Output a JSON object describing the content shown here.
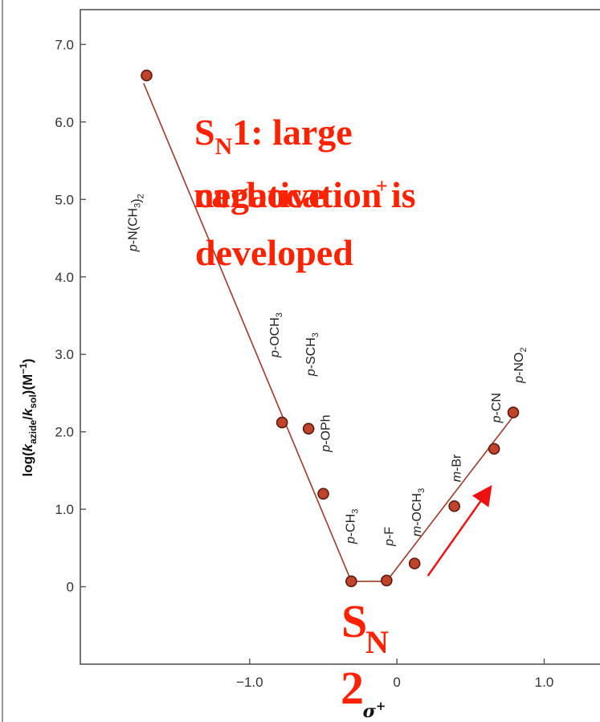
{
  "chart_data": {
    "type": "scatter",
    "xlabel": "σ⁺",
    "ylabel": "log(k_azide/k_sol)(M⁻¹)",
    "xlim": [
      -2.15,
      1.45
    ],
    "ylim": [
      -1.0,
      7.45
    ],
    "x_ticks": [
      {
        "value": -1.0,
        "label": "−1.0"
      },
      {
        "value": 0,
        "label": "0"
      },
      {
        "value": 1.0,
        "label": "1.0"
      }
    ],
    "y_ticks": [
      {
        "value": 0,
        "label": "0"
      },
      {
        "value": 1.0,
        "label": "1.0"
      },
      {
        "value": 2.0,
        "label": "2.0"
      },
      {
        "value": 3.0,
        "label": "3.0"
      },
      {
        "value": 4.0,
        "label": "4.0"
      },
      {
        "value": 5.0,
        "label": "5.0"
      },
      {
        "value": 6.0,
        "label": "6.0"
      },
      {
        "value": 7.0,
        "label": "7.0"
      }
    ],
    "points": [
      {
        "label": "p-N(CH3)2",
        "x": -1.7,
        "y": 6.6
      },
      {
        "label": "p-OCH3",
        "x": -0.78,
        "y": 2.12
      },
      {
        "label": "p-SCH3",
        "x": -0.6,
        "y": 2.04
      },
      {
        "label": "p-OPh",
        "x": -0.5,
        "y": 1.2
      },
      {
        "label": "p-CH3",
        "x": -0.31,
        "y": 0.07
      },
      {
        "label": "p-F",
        "x": -0.07,
        "y": 0.08
      },
      {
        "label": "m-OCH3",
        "x": 0.12,
        "y": 0.3
      },
      {
        "label": "m-Br",
        "x": 0.39,
        "y": 1.04
      },
      {
        "label": "p-CN",
        "x": 0.66,
        "y": 1.78
      },
      {
        "label": "p-NO2",
        "x": 0.79,
        "y": 2.25
      }
    ],
    "fit_lines": [
      [
        [
          -1.72,
          6.5
        ],
        [
          -0.31,
          0.07
        ]
      ],
      [
        [
          -0.31,
          0.07
        ],
        [
          -0.07,
          0.07
        ]
      ],
      [
        [
          -0.07,
          0.07
        ],
        [
          0.79,
          2.2
        ]
      ]
    ],
    "arrow": [
      [
        0.21,
        0.14
      ],
      [
        0.63,
        1.27
      ]
    ]
  },
  "annotations": {
    "sn1_line1_main": "S",
    "sn1_line1_sub": "N",
    "sn1_line1_rest": "1: large",
    "sn1_line2a": "negative",
    "sn1_line2b": "carbocation is",
    "sn1_line2_sup": "+",
    "sn1_line3": "developed",
    "sn2_main": "S",
    "sn2_sub": "N",
    "sn2_num": "2"
  },
  "colors": {
    "marker": "#c0442a",
    "marker_edge": "#5a1a10",
    "fit_line": "#9b3a2a",
    "arrow": "#ee1111",
    "annotation": "#ff2200"
  }
}
